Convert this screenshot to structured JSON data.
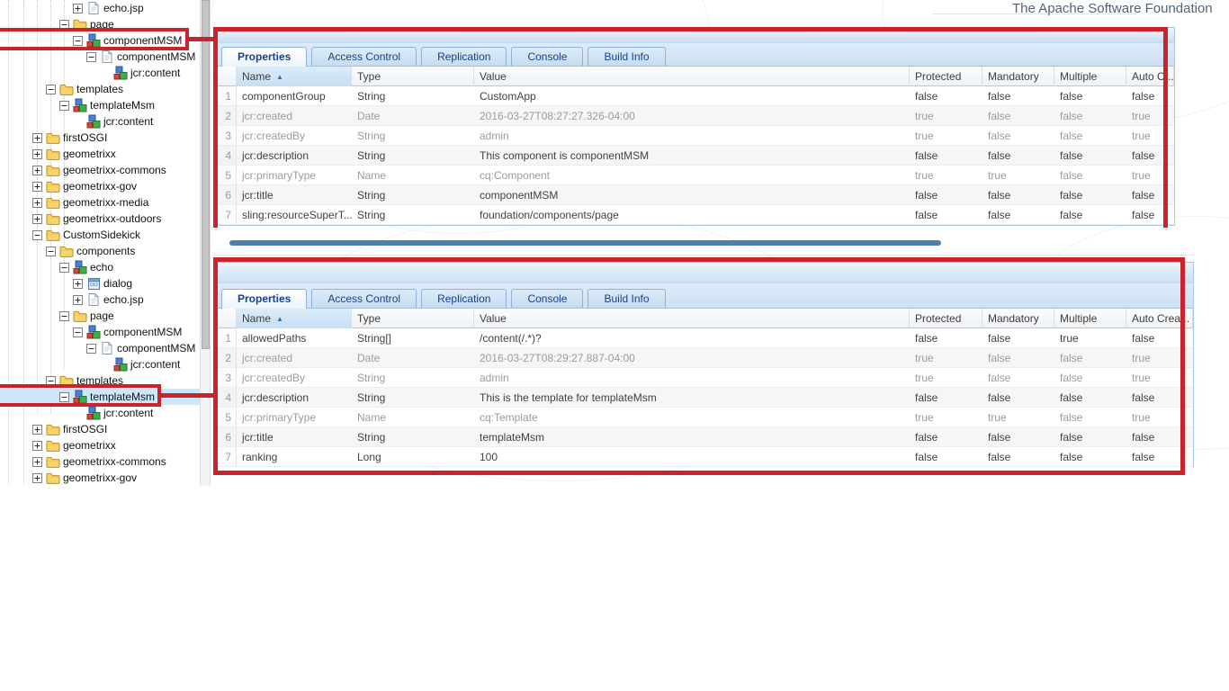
{
  "page": {
    "footer_link": "The Apache Software Foundation"
  },
  "colors": {
    "annotation_red": "#c9232b",
    "tab_text_blue": "#15428b",
    "tree_selection": "#cde7fa",
    "scroll_thumb_blue": "#4e80ab"
  },
  "tree": {
    "items": [
      {
        "label": "echo.jsp",
        "level": 3,
        "icon": "file-icon",
        "expander": "plus"
      },
      {
        "label": "page",
        "level": 2,
        "icon": "folder-icon",
        "expander": "minus"
      },
      {
        "label": "componentMSM",
        "level": 3,
        "icon": "component-icon",
        "expander": "minus",
        "annotated": true
      },
      {
        "label": "componentMSM",
        "level": 4,
        "icon": "file-icon",
        "expander": "minus"
      },
      {
        "label": "jcr:content",
        "level": 5,
        "icon": "component-icon",
        "expander": "none"
      },
      {
        "label": "templates",
        "level": 1,
        "icon": "folder-icon",
        "expander": "minus"
      },
      {
        "label": "templateMsm",
        "level": 2,
        "icon": "component-icon",
        "expander": "minus"
      },
      {
        "label": "jcr:content",
        "level": 3,
        "icon": "component-icon",
        "expander": "none"
      },
      {
        "label": "firstOSGI",
        "level": 0,
        "icon": "folder-icon",
        "expander": "plus"
      },
      {
        "label": "geometrixx",
        "level": 0,
        "icon": "folder-icon",
        "expander": "plus"
      },
      {
        "label": "geometrixx-commons",
        "level": 0,
        "icon": "folder-icon",
        "expander": "plus"
      },
      {
        "label": "geometrixx-gov",
        "level": 0,
        "icon": "folder-icon",
        "expander": "plus"
      },
      {
        "label": "geometrixx-media",
        "level": 0,
        "icon": "folder-icon",
        "expander": "plus"
      },
      {
        "label": "geometrixx-outdoors",
        "level": 0,
        "icon": "folder-icon",
        "expander": "plus"
      },
      {
        "label": "CustomSidekick",
        "level": 0,
        "icon": "folder-icon",
        "expander": "minus"
      },
      {
        "label": "components",
        "level": 1,
        "icon": "folder-icon",
        "expander": "minus"
      },
      {
        "label": "echo",
        "level": 2,
        "icon": "component-icon",
        "expander": "minus"
      },
      {
        "label": "dialog",
        "level": 3,
        "icon": "dialog-icon",
        "expander": "plus"
      },
      {
        "label": "echo.jsp",
        "level": 3,
        "icon": "file-icon",
        "expander": "plus"
      },
      {
        "label": "page",
        "level": 2,
        "icon": "folder-icon",
        "expander": "minus"
      },
      {
        "label": "componentMSM",
        "level": 3,
        "icon": "component-icon",
        "expander": "minus"
      },
      {
        "label": "componentMSM",
        "level": 4,
        "icon": "file-icon",
        "expander": "minus"
      },
      {
        "label": "jcr:content",
        "level": 5,
        "icon": "component-icon",
        "expander": "none"
      },
      {
        "label": "templates",
        "level": 1,
        "icon": "folder-icon",
        "expander": "minus"
      },
      {
        "label": "templateMsm",
        "level": 2,
        "icon": "component-icon",
        "expander": "minus",
        "selected": true,
        "annotated": true
      },
      {
        "label": "jcr:content",
        "level": 3,
        "icon": "component-icon",
        "expander": "none"
      },
      {
        "label": "firstOSGI",
        "level": 0,
        "icon": "folder-icon",
        "expander": "plus"
      },
      {
        "label": "geometrixx",
        "level": 0,
        "icon": "folder-icon",
        "expander": "plus"
      },
      {
        "label": "geometrixx-commons",
        "level": 0,
        "icon": "folder-icon",
        "expander": "plus"
      },
      {
        "label": "geometrixx-gov",
        "level": 0,
        "icon": "folder-icon",
        "expander": "plus"
      }
    ]
  },
  "panels": [
    {
      "node": "componentMSM",
      "tabs": [
        "Properties",
        "Access Control",
        "Replication",
        "Console",
        "Build Info"
      ],
      "active_tab": "Properties",
      "columns": [
        "",
        "Name",
        "Type",
        "Value",
        "Protected",
        "Mandatory",
        "Multiple",
        "Auto Cr..."
      ],
      "sorted_column": "Name",
      "rows": [
        {
          "num": "1",
          "name": "componentGroup",
          "type": "String",
          "value": "CustomApp",
          "protected": "false",
          "mandatory": "false",
          "multiple": "false",
          "auto_created": "false"
        },
        {
          "num": "2",
          "name": "jcr:created",
          "type": "Date",
          "value": "2016-03-27T08:27:27.326-04:00",
          "protected": "true",
          "mandatory": "false",
          "multiple": "false",
          "auto_created": "true"
        },
        {
          "num": "3",
          "name": "jcr:createdBy",
          "type": "String",
          "value": "admin",
          "protected": "true",
          "mandatory": "false",
          "multiple": "false",
          "auto_created": "true"
        },
        {
          "num": "4",
          "name": "jcr:description",
          "type": "String",
          "value": "This component is componentMSM",
          "protected": "false",
          "mandatory": "false",
          "multiple": "false",
          "auto_created": "false"
        },
        {
          "num": "5",
          "name": "jcr:primaryType",
          "type": "Name",
          "value": "cq:Component",
          "protected": "true",
          "mandatory": "true",
          "multiple": "false",
          "auto_created": "true"
        },
        {
          "num": "6",
          "name": "jcr:title",
          "type": "String",
          "value": "componentMSM",
          "protected": "false",
          "mandatory": "false",
          "multiple": "false",
          "auto_created": "false"
        },
        {
          "num": "7",
          "name": "sling:resourceSuperT...",
          "type": "String",
          "value": "foundation/components/page",
          "protected": "false",
          "mandatory": "false",
          "multiple": "false",
          "auto_created": "false"
        }
      ]
    },
    {
      "node": "templateMsm",
      "tabs": [
        "Properties",
        "Access Control",
        "Replication",
        "Console",
        "Build Info"
      ],
      "active_tab": "Properties",
      "columns": [
        "",
        "Name",
        "Type",
        "Value",
        "Protected",
        "Mandatory",
        "Multiple",
        "Auto Crea..."
      ],
      "sorted_column": "Name",
      "rows": [
        {
          "num": "1",
          "name": "allowedPaths",
          "type": "String[]",
          "value": "/content(/.*)?",
          "protected": "false",
          "mandatory": "false",
          "multiple": "true",
          "auto_created": "false"
        },
        {
          "num": "2",
          "name": "jcr:created",
          "type": "Date",
          "value": "2016-03-27T08:29:27.887-04:00",
          "protected": "true",
          "mandatory": "false",
          "multiple": "false",
          "auto_created": "true"
        },
        {
          "num": "3",
          "name": "jcr:createdBy",
          "type": "String",
          "value": "admin",
          "protected": "true",
          "mandatory": "false",
          "multiple": "false",
          "auto_created": "true"
        },
        {
          "num": "4",
          "name": "jcr:description",
          "type": "String",
          "value": "This is the template for templateMsm",
          "protected": "false",
          "mandatory": "false",
          "multiple": "false",
          "auto_created": "false"
        },
        {
          "num": "5",
          "name": "jcr:primaryType",
          "type": "Name",
          "value": "cq:Template",
          "protected": "true",
          "mandatory": "true",
          "multiple": "false",
          "auto_created": "true"
        },
        {
          "num": "6",
          "name": "jcr:title",
          "type": "String",
          "value": "templateMsm",
          "protected": "false",
          "mandatory": "false",
          "multiple": "false",
          "auto_created": "false"
        },
        {
          "num": "7",
          "name": "ranking",
          "type": "Long",
          "value": "100",
          "protected": "false",
          "mandatory": "false",
          "multiple": "false",
          "auto_created": "false"
        }
      ]
    }
  ]
}
